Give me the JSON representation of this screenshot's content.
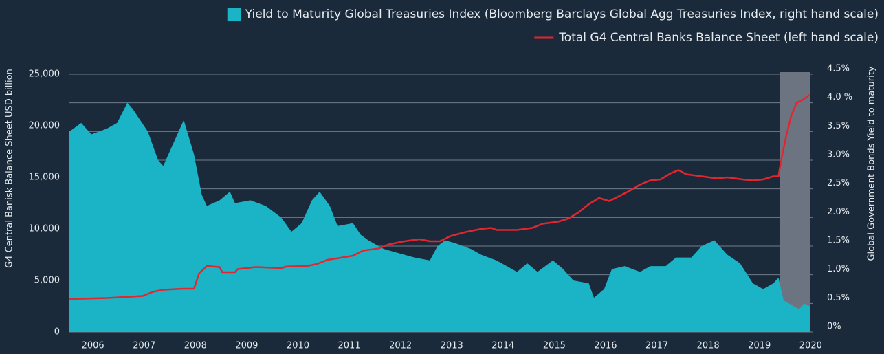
{
  "chart_data": {
    "type": "combo",
    "ylabel": "G4 Central Banisk Balance Sheet USD billion",
    "y2label": "Global Government Bonds Yield to maturity",
    "xlim": [
      2005.77,
      2020.21
    ],
    "xticks": [
      2006,
      2007,
      2008,
      2009,
      2010,
      2011,
      2012,
      2013,
      2014,
      2015,
      2016,
      2017,
      2018,
      2019,
      2020
    ],
    "ylim": [
      0,
      25000
    ],
    "yticks": [
      0,
      {
        "value": 5000,
        "label": "5,000"
      },
      {
        "value": 10000,
        "label": "10,000"
      },
      {
        "value": 15000,
        "label": "15,000"
      },
      {
        "value": 20000,
        "label": "20,000"
      },
      {
        "value": 25000,
        "label": "25,000"
      }
    ],
    "y2lim": [
      0,
      4.5
    ],
    "y2ticks": [
      {
        "value": 0,
        "label": "0%"
      },
      {
        "value": 0.5,
        "label": "0.5%"
      },
      {
        "value": 1,
        "label": "1.0%"
      },
      {
        "value": 1.5,
        "label": "1.5%"
      },
      {
        "value": 2,
        "label": "2.0%"
      },
      {
        "value": 2.5,
        "label": "2.5%"
      },
      {
        "value": 3,
        "label": "3.0%"
      },
      {
        "value": 3.5,
        "label": "3.5%"
      },
      {
        "value": 4,
        "label": "4.0 %"
      },
      {
        "value": 4.5,
        "label": "4.5%"
      }
    ],
    "grid": true,
    "legend": "top-right",
    "shaded_region": [
      2019.63,
      2020.21
    ],
    "series": [
      {
        "name": "Yield to Maturity Global Treasuries Index (Bloomberg Barclays Global Agg Treasuries Index, right hand scale)",
        "type": "area",
        "axis": "y2",
        "color": "#1bb3c6",
        "x": [
          2005.77,
          2006.0,
          2006.2,
          2006.5,
          2006.7,
          2006.9,
          2007.0,
          2007.3,
          2007.5,
          2007.6,
          2007.9,
          2008.0,
          2008.2,
          2008.35,
          2008.45,
          2008.7,
          2008.9,
          2009.0,
          2009.3,
          2009.6,
          2009.9,
          2010.1,
          2010.3,
          2010.5,
          2010.65,
          2010.85,
          2011.0,
          2011.3,
          2011.45,
          2011.6,
          2011.9,
          2012.1,
          2012.3,
          2012.5,
          2012.8,
          2012.95,
          2013.1,
          2013.3,
          2013.6,
          2013.8,
          2014.1,
          2014.3,
          2014.5,
          2014.7,
          2014.9,
          2015.2,
          2015.4,
          2015.6,
          2015.9,
          2016.0,
          2016.2,
          2016.35,
          2016.6,
          2016.9,
          2017.1,
          2017.4,
          2017.6,
          2017.9,
          2018.1,
          2018.35,
          2018.6,
          2018.85,
          2019.1,
          2019.3,
          2019.5,
          2019.6,
          2019.7,
          2019.9,
          2020.0,
          2020.1,
          2020.21
        ],
        "values": [
          3.5,
          3.65,
          3.45,
          3.55,
          3.65,
          4.0,
          3.9,
          3.5,
          3.0,
          2.9,
          3.5,
          3.7,
          3.1,
          2.4,
          2.2,
          2.3,
          2.45,
          2.25,
          2.3,
          2.2,
          2.0,
          1.75,
          1.9,
          2.3,
          2.45,
          2.2,
          1.85,
          1.9,
          1.7,
          1.6,
          1.45,
          1.4,
          1.35,
          1.3,
          1.25,
          1.5,
          1.6,
          1.55,
          1.45,
          1.35,
          1.25,
          1.15,
          1.05,
          1.2,
          1.05,
          1.25,
          1.1,
          0.9,
          0.85,
          0.6,
          0.75,
          1.1,
          1.15,
          1.05,
          1.15,
          1.15,
          1.3,
          1.3,
          1.5,
          1.6,
          1.35,
          1.2,
          0.85,
          0.75,
          0.85,
          0.95,
          0.55,
          0.45,
          0.4,
          0.5,
          0.45
        ]
      },
      {
        "name": "Total G4 Central Banks Balance Sheet (left hand scale)",
        "type": "line",
        "axis": "y",
        "color": "#e3262e",
        "x": [
          2005.77,
          2006.5,
          2007.2,
          2007.4,
          2007.6,
          2008.0,
          2008.2,
          2008.3,
          2008.45,
          2008.7,
          2008.75,
          2009.0,
          2009.05,
          2009.4,
          2009.9,
          2010.0,
          2010.4,
          2010.6,
          2010.8,
          2011.0,
          2011.3,
          2011.5,
          2011.8,
          2012.0,
          2012.3,
          2012.6,
          2012.8,
          2013.0,
          2013.2,
          2013.5,
          2013.8,
          2014.0,
          2014.1,
          2014.5,
          2014.8,
          2015.0,
          2015.3,
          2015.5,
          2015.7,
          2015.9,
          2016.1,
          2016.3,
          2016.5,
          2016.7,
          2016.9,
          2017.1,
          2017.3,
          2017.5,
          2017.65,
          2017.8,
          2018.1,
          2018.4,
          2018.6,
          2018.9,
          2019.1,
          2019.3,
          2019.5,
          2019.6,
          2019.65,
          2019.75,
          2019.85,
          2019.95,
          2020.1,
          2020.2
        ],
        "values": [
          3200,
          3300,
          3500,
          3900,
          4100,
          4200,
          4200,
          5700,
          6400,
          6300,
          5800,
          5800,
          6100,
          6300,
          6200,
          6350,
          6400,
          6600,
          7000,
          7150,
          7400,
          7900,
          8100,
          8500,
          8800,
          9000,
          8800,
          8800,
          9300,
          9700,
          10000,
          10100,
          9900,
          9900,
          10100,
          10500,
          10700,
          11000,
          11600,
          12400,
          13000,
          12700,
          13200,
          13700,
          14300,
          14700,
          14800,
          15400,
          15700,
          15300,
          15100,
          14900,
          15000,
          14800,
          14700,
          14800,
          15100,
          15100,
          16600,
          19000,
          21000,
          22200,
          22600,
          23000
        ]
      }
    ]
  }
}
